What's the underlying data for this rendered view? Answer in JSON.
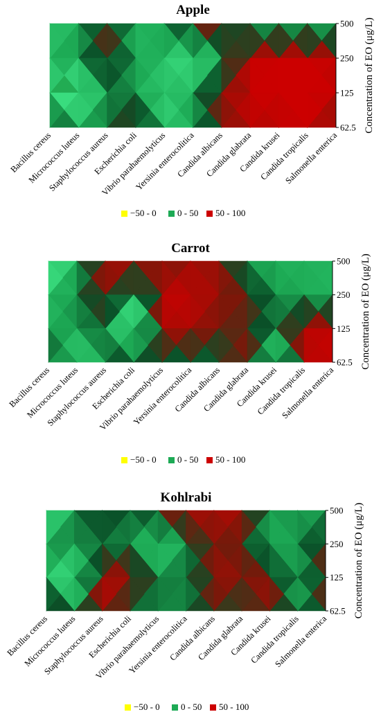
{
  "chart_data": [
    {
      "type": "heatmap",
      "title": "Apple",
      "ylabel": "Concentration of EO (μg/L)",
      "categories": [
        "Bacillus cereus",
        "Micrococcus luteus",
        "Staphylococcus aureus",
        "Escherichia coli",
        "Vibrio parahaemolyticus",
        "Yersinia enterocolitica",
        "Candida albicans",
        "Candida glabrata",
        "Candida krusei",
        "Candida tropicalis",
        "Salmonella enterica"
      ],
      "y_ticks": [
        "500",
        "250",
        "125",
        "62.5"
      ],
      "values": [
        [
          12,
          20,
          70,
          15,
          30,
          75,
          80,
          25,
          25,
          22,
          20
        ],
        [
          18,
          35,
          65,
          25,
          20,
          -10,
          30,
          88,
          90,
          92,
          85
        ],
        [
          8,
          -20,
          40,
          30,
          5,
          30,
          75,
          90,
          90,
          92,
          88
        ],
        [
          60,
          30,
          35,
          80,
          10,
          25,
          70,
          85,
          85,
          92,
          70
        ]
      ],
      "legend": [
        "−50 - 0",
        "0 - 50",
        "50 - 100"
      ],
      "colors": {
        "neg": "#ffff00",
        "mid": "#1daa55",
        "high": "#cc0000"
      }
    },
    {
      "type": "heatmap",
      "title": "Carrot",
      "ylabel": "Concentration of EO (μg/L)",
      "categories": [
        "Bacillus cereus",
        "Micrococcus luteus",
        "Staphylococcus aureus",
        "Escherichia coli",
        "Vibrio parahaemolyticus",
        "Yersinia enterocolitica",
        "Candida albicans",
        "Candida glabrata",
        "Candida krusei",
        "Candida tropicalis",
        "Salmonella enterica"
      ],
      "y_ticks": [
        "500",
        "250",
        "125",
        "62.5"
      ],
      "values": [
        [
          -20,
          30,
          80,
          85,
          70,
          75,
          80,
          25,
          20,
          22,
          20
        ],
        [
          20,
          30,
          80,
          20,
          85,
          90,
          75,
          70,
          30,
          25,
          20
        ],
        [
          18,
          35,
          40,
          -25,
          85,
          80,
          70,
          60,
          40,
          85,
          88
        ],
        [
          70,
          -10,
          40,
          70,
          40,
          45,
          40,
          85,
          -15,
          85,
          88
        ]
      ],
      "legend": [
        "−50 - 0",
        "0 - 50",
        "50 - 100"
      ],
      "colors": {
        "neg": "#ffff00",
        "mid": "#1daa55",
        "high": "#cc0000"
      }
    },
    {
      "type": "heatmap",
      "title": "Kohlrabi",
      "ylabel": "Concentration of EO (μg/L)",
      "categories": [
        "Bacillus cereus",
        "Micrococcus luteus",
        "Staphylococcus aureus",
        "Escherichia coli",
        "Vibrio parahaemolyticus",
        "Yersinia enterocolitica",
        "Candida albicans",
        "Candida glabrata",
        "Candida krusei",
        "Candida tropicalis",
        "Salmonella enterica"
      ],
      "y_ticks": [
        "500",
        "250",
        "125",
        "62.5"
      ],
      "values": [
        [
          -10,
          30,
          70,
          35,
          70,
          85,
          80,
          85,
          30,
          30,
          20
        ],
        [
          30,
          40,
          30,
          40,
          -5,
          40,
          75,
          60,
          20,
          30,
          70
        ],
        [
          20,
          -15,
          85,
          80,
          40,
          35,
          75,
          80,
          70,
          20,
          70
        ],
        [
          85,
          35,
          85,
          40,
          35,
          35,
          70,
          40,
          85,
          25,
          70
        ]
      ],
      "legend": [
        "−50 - 0",
        "0 - 50",
        "50 - 100"
      ],
      "colors": {
        "neg": "#ffff00",
        "mid": "#1daa55",
        "high": "#cc0000"
      }
    }
  ]
}
